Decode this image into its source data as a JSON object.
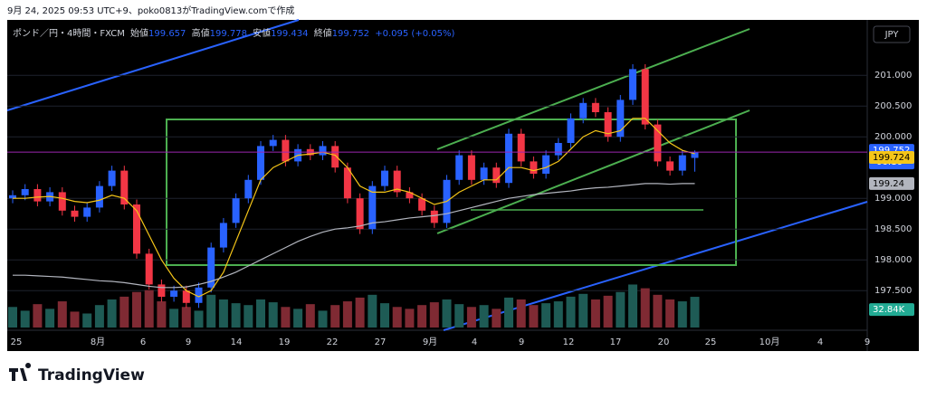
{
  "header": {
    "credit": "9月 24, 2025 09:53 UTC+9、poko0813がTradingView.comで作成"
  },
  "footer": {
    "logo_text": "TradingView"
  },
  "chart_data": {
    "type": "candlestick",
    "symbol": "ポンド／円・4時間・FXCM",
    "legend_labels": {
      "open": "始値",
      "high": "高値",
      "low": "安値",
      "close": "終値"
    },
    "change_text": "+0.095 (+0.05%)",
    "currency": "JPY",
    "countdown": "06:16",
    "current_volume_label": "32.84K",
    "up_color": "#2962ff",
    "down_color": "#f23645",
    "price_line_color": "#9c27b0",
    "ylim": [
      196.9,
      201.9
    ],
    "yticks": [
      {
        "value": 197.5,
        "label": "197.500"
      },
      {
        "value": 198,
        "label": "198.000"
      },
      {
        "value": 198.5,
        "label": "198.500"
      },
      {
        "value": 199,
        "label": "199.000"
      },
      {
        "value": 200,
        "label": "200.000"
      },
      {
        "value": 200.5,
        "label": "200.500"
      },
      {
        "value": 201,
        "label": "201.000"
      }
    ],
    "grid": true,
    "x_labels": [
      "25",
      "8月",
      "6",
      "9",
      "14",
      "19",
      "22",
      "27",
      "9月",
      "4",
      "9",
      "12",
      "17",
      "20",
      "25",
      "10月",
      "4",
      "9"
    ],
    "open": [
      199.0,
      199.05,
      199.15,
      198.95,
      199.1,
      198.8,
      198.7,
      198.85,
      199.2,
      199.45,
      198.9,
      198.1,
      197.6,
      197.4,
      197.5,
      197.3,
      197.55,
      198.2,
      198.6,
      199.0,
      199.3,
      199.85,
      199.95,
      199.6,
      199.8,
      199.7,
      199.85,
      199.5,
      199.0,
      198.5,
      199.2,
      199.45,
      199.1,
      199.0,
      198.8,
      198.6,
      199.3,
      199.7,
      199.3,
      199.5,
      199.25,
      200.05,
      199.6,
      199.4,
      199.7,
      199.9,
      200.3,
      200.55,
      200.4,
      200.0,
      200.6,
      201.1,
      200.2,
      199.6,
      199.45,
      199.657
    ],
    "high": [
      199.13,
      199.23,
      199.23,
      199.18,
      199.18,
      198.88,
      198.93,
      199.28,
      199.53,
      199.53,
      198.98,
      198.18,
      197.68,
      197.58,
      197.58,
      197.63,
      198.28,
      198.68,
      199.08,
      199.38,
      199.93,
      200.03,
      200.03,
      199.88,
      199.88,
      199.93,
      199.93,
      199.58,
      199.08,
      199.28,
      199.53,
      199.53,
      199.18,
      199.08,
      198.88,
      199.38,
      199.78,
      199.78,
      199.58,
      199.58,
      200.13,
      200.13,
      199.68,
      199.78,
      199.98,
      200.38,
      200.63,
      200.63,
      200.48,
      200.68,
      201.18,
      201.18,
      200.28,
      199.68,
      199.78,
      199.778
    ],
    "low": [
      198.92,
      198.97,
      198.87,
      198.87,
      198.72,
      198.62,
      198.62,
      198.77,
      199.12,
      198.82,
      198.02,
      197.52,
      197.32,
      197.32,
      197.22,
      197.22,
      197.47,
      198.12,
      198.52,
      198.92,
      199.22,
      199.77,
      199.52,
      199.52,
      199.62,
      199.62,
      199.42,
      198.92,
      198.42,
      198.42,
      199.12,
      199.02,
      198.92,
      198.72,
      198.52,
      198.52,
      199.22,
      199.22,
      199.22,
      199.17,
      199.17,
      199.52,
      199.32,
      199.32,
      199.62,
      199.82,
      200.22,
      200.32,
      199.92,
      199.92,
      200.52,
      200.12,
      199.52,
      199.37,
      199.37,
      199.434
    ],
    "close": [
      199.05,
      199.15,
      198.95,
      199.1,
      198.8,
      198.7,
      198.85,
      199.2,
      199.45,
      198.9,
      198.1,
      197.6,
      197.4,
      197.5,
      197.3,
      197.55,
      198.2,
      198.6,
      199.0,
      199.3,
      199.85,
      199.95,
      199.6,
      199.8,
      199.7,
      199.85,
      199.5,
      199.0,
      198.5,
      199.2,
      199.45,
      199.1,
      199.0,
      198.8,
      198.6,
      199.3,
      199.7,
      199.3,
      199.5,
      199.25,
      200.05,
      199.6,
      199.4,
      199.7,
      199.9,
      200.3,
      200.55,
      200.4,
      200.0,
      200.6,
      201.1,
      200.2,
      199.6,
      199.45,
      199.7,
      199.752
    ],
    "volume_ylim": [
      0,
      60
    ],
    "volume": [
      22,
      18,
      25,
      20,
      28,
      17,
      15,
      24,
      30,
      33,
      38,
      40,
      28,
      20,
      22,
      18,
      35,
      30,
      26,
      24,
      30,
      27,
      22,
      20,
      25,
      18,
      24,
      28,
      32,
      35,
      26,
      22,
      20,
      24,
      27,
      30,
      25,
      22,
      24,
      20,
      32,
      30,
      24,
      26,
      28,
      33,
      36,
      30,
      34,
      38,
      46,
      42,
      35,
      30,
      28,
      32.84
    ],
    "overlays": [
      {
        "color": "#f5c518",
        "values": [
          199.0,
          199.0,
          199.02,
          199.03,
          199.0,
          198.95,
          198.93,
          198.97,
          199.05,
          199.0,
          198.8,
          198.4,
          198.0,
          197.7,
          197.5,
          197.4,
          197.5,
          197.8,
          198.3,
          198.8,
          199.3,
          199.5,
          199.6,
          199.7,
          199.72,
          199.75,
          199.7,
          199.5,
          199.2,
          199.1,
          199.1,
          199.15,
          199.1,
          199.0,
          198.9,
          198.95,
          199.1,
          199.2,
          199.3,
          199.3,
          199.5,
          199.5,
          199.45,
          199.5,
          199.6,
          199.8,
          200.0,
          200.1,
          200.05,
          200.1,
          200.3,
          200.3,
          200.1,
          199.9,
          199.78,
          199.724
        ]
      },
      {
        "color": "#b2b5be",
        "values": [
          197.75,
          197.75,
          197.74,
          197.73,
          197.72,
          197.7,
          197.68,
          197.66,
          197.65,
          197.63,
          197.6,
          197.57,
          197.55,
          197.55,
          197.56,
          197.6,
          197.65,
          197.72,
          197.8,
          197.9,
          198.0,
          198.1,
          198.2,
          198.3,
          198.38,
          198.45,
          198.5,
          198.52,
          198.55,
          198.6,
          198.62,
          198.65,
          198.68,
          198.7,
          198.72,
          198.75,
          198.8,
          198.85,
          198.9,
          198.95,
          199.0,
          199.03,
          199.06,
          199.08,
          199.1,
          199.12,
          199.15,
          199.17,
          199.18,
          199.2,
          199.22,
          199.24,
          199.24,
          199.23,
          199.24,
          199.24
        ]
      }
    ]
  }
}
